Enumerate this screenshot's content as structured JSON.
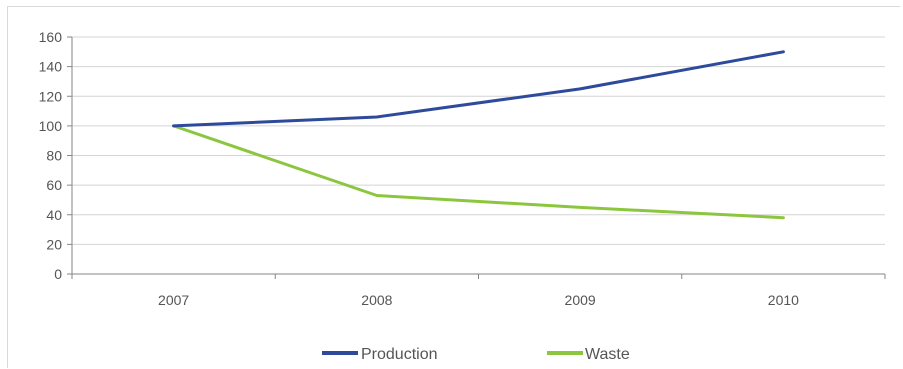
{
  "chart_data": {
    "type": "line",
    "title": "",
    "xlabel": "",
    "ylabel": "",
    "categories": [
      "2007",
      "2008",
      "2009",
      "2010"
    ],
    "ylim": [
      0,
      160
    ],
    "yticks": [
      0,
      20,
      40,
      60,
      80,
      100,
      120,
      140,
      160
    ],
    "grid": true,
    "legend_position": "bottom",
    "series": [
      {
        "name": "Production",
        "values": [
          100,
          106,
          125,
          150
        ],
        "color": "#2e4a9a"
      },
      {
        "name": "Waste",
        "values": [
          100,
          53,
          45,
          38
        ],
        "color": "#8cc63f"
      }
    ]
  }
}
